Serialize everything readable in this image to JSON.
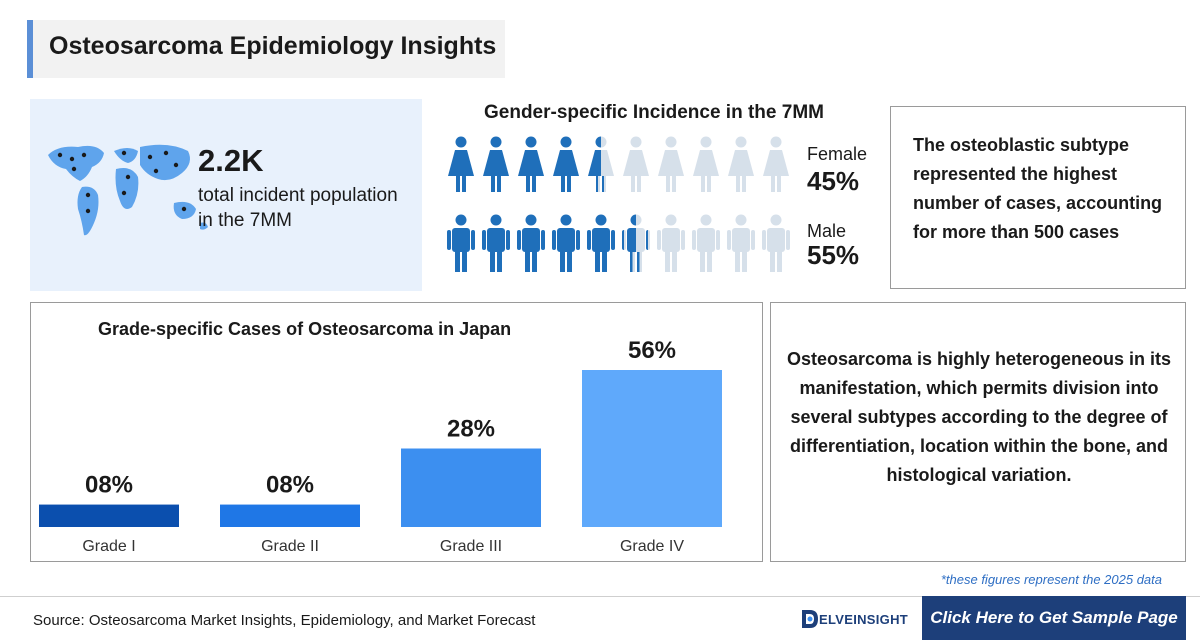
{
  "header": {
    "title": "Osteosarcoma Epidemiology Insights"
  },
  "incident": {
    "value": "2.2K",
    "text": "total incident population in the 7MM"
  },
  "gender": {
    "title": "Gender-specific Incidence in the 7MM",
    "female": {
      "label": "Female",
      "percent": "45%",
      "fraction": 0.45
    },
    "male": {
      "label": "Male",
      "percent": "55%",
      "fraction": 0.55
    },
    "colors": {
      "filled": "#1f6fba",
      "empty": "#d6e0ea"
    }
  },
  "notes": {
    "subtype": "The osteoblastic subtype represented the highest number of cases, accounting for more than 500 cases",
    "heterogeneous": "Osteosarcoma is highly heterogeneous in its manifestation, which permits division into several subtypes according to the degree of differentiation, location within the bone, and histological variation."
  },
  "chart_data": {
    "type": "bar",
    "title": "Grade-specific Cases of Osteosarcoma in Japan",
    "categories": [
      "Grade I",
      "Grade II",
      "Grade III",
      "Grade IV"
    ],
    "values": [
      8,
      8,
      28,
      56
    ],
    "value_labels": [
      "08%",
      "08%",
      "28%",
      "56%"
    ],
    "colors": [
      "#0b4fae",
      "#1f77e6",
      "#3c8ff0",
      "#5fa9fb"
    ],
    "ylim": [
      0,
      56
    ],
    "grid": false
  },
  "footer": {
    "footnote": "*these figures represent the 2025 data",
    "source": "Source: Osteosarcoma Market Insights, Epidemiology, and Market Forecast",
    "logo": "ELVEINSIGHT",
    "cta": "Click Here to Get Sample Page"
  }
}
